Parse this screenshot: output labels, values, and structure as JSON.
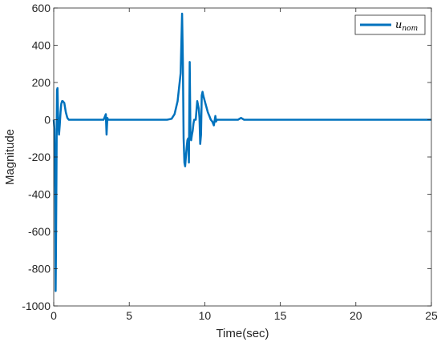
{
  "chart_data": {
    "type": "line",
    "title": "",
    "xlabel": "Time(sec)",
    "ylabel": "Magnitude",
    "xlim": [
      0,
      25
    ],
    "ylim": [
      -1000,
      600
    ],
    "xticks": [
      "0",
      "5",
      "10",
      "15",
      "20",
      "25"
    ],
    "yticks": [
      "-1000",
      "-800",
      "-600",
      "-400",
      "-200",
      "0",
      "200",
      "400",
      "600"
    ],
    "legend_position": "top-right",
    "grid": false,
    "legend": {
      "base": "u",
      "subscript": "nom"
    },
    "series": [
      {
        "name": "u_nom",
        "color": "#0072BD",
        "x": [
          0,
          0.05,
          0.1,
          0.13,
          0.15,
          0.18,
          0.2,
          0.22,
          0.25,
          0.28,
          0.3,
          0.35,
          0.4,
          0.45,
          0.5,
          0.55,
          0.6,
          0.7,
          0.8,
          0.9,
          1.0,
          1.1,
          1.3,
          1.5,
          1.8,
          2.0,
          2.5,
          3.0,
          3.3,
          3.4,
          3.45,
          3.5,
          3.55,
          3.6,
          3.8,
          4.0,
          5.0,
          6.0,
          7.0,
          7.5,
          7.8,
          8.0,
          8.2,
          8.4,
          8.5,
          8.55,
          8.6,
          8.65,
          8.7,
          8.75,
          8.8,
          8.85,
          8.9,
          8.95,
          9.0,
          9.05,
          9.1,
          9.15,
          9.2,
          9.25,
          9.3,
          9.4,
          9.5,
          9.6,
          9.65,
          9.7,
          9.75,
          9.8,
          9.85,
          9.9,
          10.0,
          10.1,
          10.2,
          10.3,
          10.4,
          10.5,
          10.6,
          10.7,
          10.75,
          10.8,
          10.9,
          11.0,
          11.5,
          12.0,
          12.2,
          12.4,
          12.6,
          13.0,
          14.0,
          15.0,
          17.5,
          20.0,
          22.5,
          25.0
        ],
        "values": [
          0,
          -50,
          -400,
          -920,
          -700,
          -300,
          0,
          160,
          170,
          50,
          -20,
          -80,
          -30,
          40,
          85,
          100,
          100,
          90,
          40,
          10,
          0,
          0,
          0,
          0,
          0,
          0,
          0,
          0,
          0,
          20,
          30,
          -80,
          10,
          0,
          0,
          0,
          0,
          0,
          0,
          0,
          5,
          30,
          100,
          250,
          570,
          300,
          -100,
          -230,
          -250,
          -200,
          -150,
          -110,
          -100,
          -230,
          310,
          -80,
          -110,
          -80,
          -60,
          -20,
          0,
          0,
          100,
          60,
          10,
          -130,
          -80,
          130,
          150,
          130,
          100,
          70,
          40,
          20,
          0,
          -10,
          -30,
          20,
          -10,
          0,
          0,
          0,
          0,
          0,
          0,
          10,
          0,
          0,
          0,
          0,
          0,
          0,
          0,
          0
        ]
      }
    ]
  }
}
